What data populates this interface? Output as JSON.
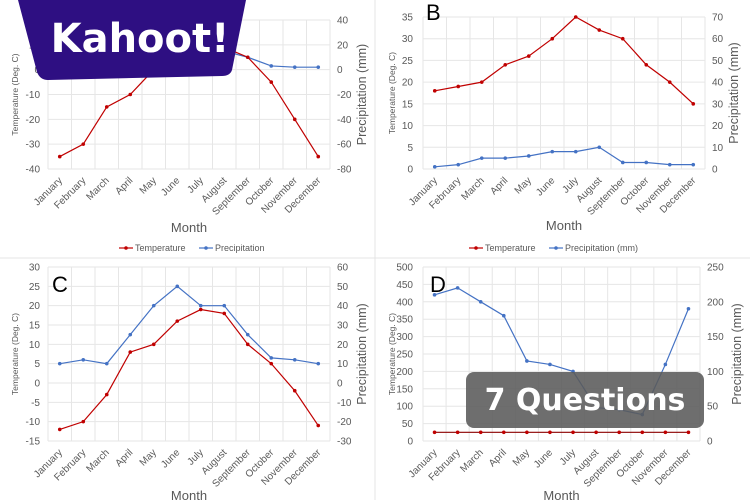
{
  "brand": {
    "logo_text": "Kahoot!",
    "logo_color": "#2e0f82"
  },
  "overlay": {
    "label": "7 Questions"
  },
  "colors": {
    "temperature": "#c00000",
    "precipitation": "#4472c4"
  },
  "chart_data": [
    {
      "type": "line",
      "title": "",
      "categories": [
        "January",
        "February",
        "March",
        "April",
        "May",
        "June",
        "July",
        "August",
        "September",
        "October",
        "November",
        "December"
      ],
      "xlabel": "Month",
      "ylabel": "Temperature (Deg. C)",
      "y2label": "Precipitation (mm)",
      "ylim": [
        -40,
        20
      ],
      "y_ticks": [
        "-40",
        "-30",
        "-20",
        "-10",
        "0",
        "10",
        "20"
      ],
      "y2lim": [
        -80,
        40
      ],
      "y2_ticks": [
        "-80",
        "-60",
        "-40",
        "-20",
        "0",
        "20",
        "40"
      ],
      "grid": true,
      "legend": "bottom",
      "series": [
        {
          "name": "Temperature",
          "axis": "left",
          "values": [
            -35,
            -30,
            -15,
            -10,
            0,
            5,
            10,
            9,
            5,
            -5,
            -20,
            -35
          ]
        },
        {
          "name": "Precipitation",
          "axis": "right",
          "values": [
            null,
            null,
            null,
            null,
            null,
            null,
            null,
            15,
            10,
            3,
            2,
            2
          ]
        }
      ]
    },
    {
      "type": "line",
      "title": "B",
      "categories": [
        "January",
        "February",
        "March",
        "April",
        "May",
        "June",
        "July",
        "August",
        "September",
        "October",
        "November",
        "December"
      ],
      "xlabel": "Month",
      "ylabel": "Temperature (Deg. C)",
      "y2label": "Precipitation (mm)",
      "ylim": [
        0,
        35
      ],
      "y_ticks": [
        "0",
        "5",
        "10",
        "15",
        "20",
        "25",
        "30",
        "35"
      ],
      "y2lim": [
        0,
        70
      ],
      "y2_ticks": [
        "0",
        "10",
        "20",
        "30",
        "40",
        "50",
        "60",
        "70"
      ],
      "grid": true,
      "legend": "bottom",
      "series": [
        {
          "name": "Temperature",
          "axis": "left",
          "values": [
            18,
            19,
            20,
            24,
            26,
            30,
            35,
            32,
            30,
            24,
            20,
            15
          ]
        },
        {
          "name": "Precipitation (mm)",
          "axis": "right",
          "values": [
            1,
            2,
            5,
            5,
            6,
            8,
            8,
            10,
            3,
            3,
            2,
            2
          ]
        }
      ]
    },
    {
      "type": "line",
      "title": "C",
      "categories": [
        "January",
        "February",
        "March",
        "April",
        "May",
        "June",
        "July",
        "August",
        "September",
        "October",
        "November",
        "December"
      ],
      "xlabel": "Month",
      "ylabel": "Temperature (Deg. C)",
      "y2label": "Precipitation (mm)",
      "ylim": [
        -15,
        30
      ],
      "y_ticks": [
        "-15",
        "-10",
        "-5",
        "0",
        "5",
        "10",
        "15",
        "20",
        "25",
        "30"
      ],
      "y2lim": [
        -30,
        60
      ],
      "y2_ticks": [
        "-30",
        "-20",
        "-10",
        "0",
        "10",
        "20",
        "30",
        "40",
        "50",
        "60"
      ],
      "grid": true,
      "series": [
        {
          "axis": "left",
          "values": [
            -12,
            -10,
            -3,
            8,
            10,
            16,
            19,
            18,
            10,
            5,
            -2,
            -11
          ]
        },
        {
          "axis": "right",
          "values": [
            10,
            12,
            10,
            25,
            40,
            50,
            40,
            40,
            25,
            13,
            12,
            10
          ]
        }
      ]
    },
    {
      "type": "line",
      "title": "D",
      "categories": [
        "January",
        "February",
        "March",
        "April",
        "May",
        "June",
        "July",
        "August",
        "September",
        "October",
        "November",
        "December"
      ],
      "xlabel": "Month",
      "ylabel": "Temperature (Deg. C)",
      "y2label": "Precipitation (mm)",
      "ylim": [
        0,
        500
      ],
      "y_ticks": [
        "0",
        "50",
        "100",
        "150",
        "200",
        "250",
        "300",
        "350",
        "400",
        "450",
        "500"
      ],
      "y2lim": [
        0,
        250
      ],
      "y2_ticks": [
        "0",
        "50",
        "100",
        "150",
        "200",
        "250"
      ],
      "grid": true,
      "series": [
        {
          "axis": "left",
          "values": [
            25,
            25,
            25,
            25,
            25,
            25,
            25,
            25,
            25,
            25,
            25,
            25
          ]
        },
        {
          "axis": "right",
          "values": [
            210,
            220,
            200,
            180,
            115,
            110,
            100,
            48,
            45,
            38,
            110,
            190
          ]
        }
      ]
    }
  ]
}
